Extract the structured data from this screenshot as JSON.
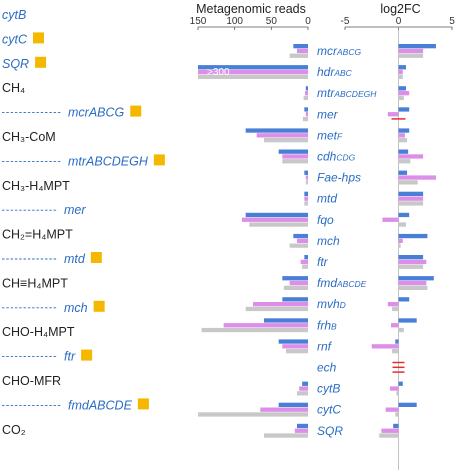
{
  "chart_data": {
    "type": "bar",
    "panels": [
      {
        "title": "Metagenomic reads",
        "xlim": [
          150,
          0
        ],
        "ticks": [
          "150",
          "100",
          "50",
          "0"
        ]
      },
      {
        "title": "log2FC",
        "xlim": [
          -5,
          5
        ],
        "ticks": [
          "-5",
          "0",
          "5"
        ]
      }
    ],
    "series": [
      {
        "name": "",
        "color": "#4a7fd8"
      },
      {
        "name": "",
        "color": "#dd8ee8"
      },
      {
        "name": "",
        "color": "#c8c8c8"
      }
    ],
    "genes": [
      {
        "main": "mcr",
        "sub": "ABCG",
        "reads": [
          20,
          15,
          25
        ],
        "fc": [
          3.5,
          2.3,
          2.3
        ]
      },
      {
        "main": "hdr",
        "sub": "ABC",
        "reads": [
          150,
          150,
          150
        ],
        "fc": [
          0.7,
          0.4,
          0.4
        ]
      },
      {
        "main": "mtr",
        "sub": "ABCDEGH",
        "reads": [
          3,
          4,
          6
        ],
        "fc": [
          0.7,
          1.0,
          0.5
        ]
      },
      {
        "main": "mer",
        "sub": "",
        "reads": [
          5,
          3,
          7
        ],
        "fc": [
          1.0,
          -1.0,
          null
        ]
      },
      {
        "main": "met",
        "sub": "F",
        "reads": [
          85,
          70,
          60
        ],
        "fc": [
          1.0,
          0.6,
          0.8
        ]
      },
      {
        "main": "cdh",
        "sub": "CDG",
        "reads": [
          40,
          35,
          35
        ],
        "fc": [
          0.9,
          2.3,
          1.1
        ]
      },
      {
        "main": "Fae-hps",
        "sub": "",
        "reads": [
          5,
          3,
          3
        ],
        "fc": [
          0.8,
          3.5,
          1.8
        ]
      },
      {
        "main": "mtd",
        "sub": "",
        "reads": [
          5,
          5,
          5
        ],
        "fc": [
          2.3,
          2.3,
          2.3
        ]
      },
      {
        "main": "fqo",
        "sub": "",
        "reads": [
          85,
          90,
          80
        ],
        "fc": [
          1.0,
          -1.5,
          0.7
        ]
      },
      {
        "main": "mch",
        "sub": "",
        "reads": [
          20,
          15,
          25
        ],
        "fc": [
          2.7,
          0.4,
          0.2
        ]
      },
      {
        "main": "ftr",
        "sub": "",
        "reads": [
          5,
          10,
          8
        ],
        "fc": [
          2.3,
          2.6,
          2.3
        ]
      },
      {
        "main": "fmd",
        "sub": "ABCDE",
        "reads": [
          35,
          25,
          33
        ],
        "fc": [
          3.3,
          2.6,
          2.7
        ]
      },
      {
        "main": "mvh",
        "sub": "D",
        "reads": [
          35,
          75,
          85
        ],
        "fc": [
          1.0,
          -1.0,
          -0.6
        ]
      },
      {
        "main": "frh",
        "sub": "B",
        "reads": [
          60,
          115,
          145
        ],
        "fc": [
          1.7,
          -0.7,
          0.5
        ]
      },
      {
        "main": "rnf",
        "sub": "",
        "reads": [
          40,
          35,
          30
        ],
        "fc": [
          -0.3,
          -2.5,
          -0.6
        ]
      },
      {
        "main": "ech",
        "sub": "",
        "reads": [
          0,
          0,
          0
        ],
        "fc": [
          -0.5,
          -0.5,
          -0.5
        ]
      },
      {
        "main": "cytB",
        "sub": "",
        "reads": [
          8,
          12,
          15
        ],
        "fc": [
          0.4,
          -0.8,
          -0.2
        ]
      },
      {
        "main": "cytC",
        "sub": "",
        "reads": [
          40,
          65,
          150
        ],
        "fc": [
          1.7,
          -1.2,
          -0.3
        ]
      },
      {
        "main": "SQR",
        "sub": "",
        "reads": [
          15,
          18,
          60
        ],
        "fc": [
          -0.5,
          -1.6,
          -1.8
        ]
      }
    ],
    "bar_value_labels": [
      {
        "row": 1,
        "text": ">300"
      }
    ],
    "ech_marks_color": "#e03030",
    "pathway_labels": [
      {
        "text": "cytB",
        "style": "blue",
        "box": false,
        "dashed": false
      },
      {
        "text": "cytC",
        "style": "blue",
        "box": true,
        "dashed": false
      },
      {
        "text": "SQR",
        "style": "blue",
        "box": true,
        "dashed": false
      },
      {
        "text": "CH₄",
        "style": "black",
        "box": false,
        "dashed": false
      },
      {
        "text": "mcrABCG",
        "style": "blue",
        "box": true,
        "dashed": true
      },
      {
        "text": "CH₃-CoM",
        "style": "black",
        "box": false,
        "dashed": false
      },
      {
        "text": "mtrABCDEGH",
        "style": "blue",
        "box": true,
        "dashed": true
      },
      {
        "text": "CH₃-H₄MPT",
        "style": "black",
        "box": false,
        "dashed": false
      },
      {
        "text": "mer",
        "style": "blue",
        "box": false,
        "dashed": true
      },
      {
        "text": "CH₂=H₄MPT",
        "style": "black",
        "box": false,
        "dashed": false
      },
      {
        "text": "mtd",
        "style": "blue",
        "box": true,
        "dashed": true
      },
      {
        "text": "CH≡H₄MPT",
        "style": "black",
        "box": false,
        "dashed": false
      },
      {
        "text": "mch",
        "style": "blue",
        "box": true,
        "dashed": true
      },
      {
        "text": "CHO-H₄MPT",
        "style": "black",
        "box": false,
        "dashed": false
      },
      {
        "text": "ftr",
        "style": "blue",
        "box": true,
        "dashed": true
      },
      {
        "text": "CHO-MFR",
        "style": "black",
        "box": false,
        "dashed": false
      },
      {
        "text": "fmdABCDE",
        "style": "blue",
        "box": true,
        "dashed": true
      },
      {
        "text": "CO₂",
        "style": "black",
        "box": false,
        "dashed": false
      }
    ],
    "box_color": "#f5b800"
  }
}
